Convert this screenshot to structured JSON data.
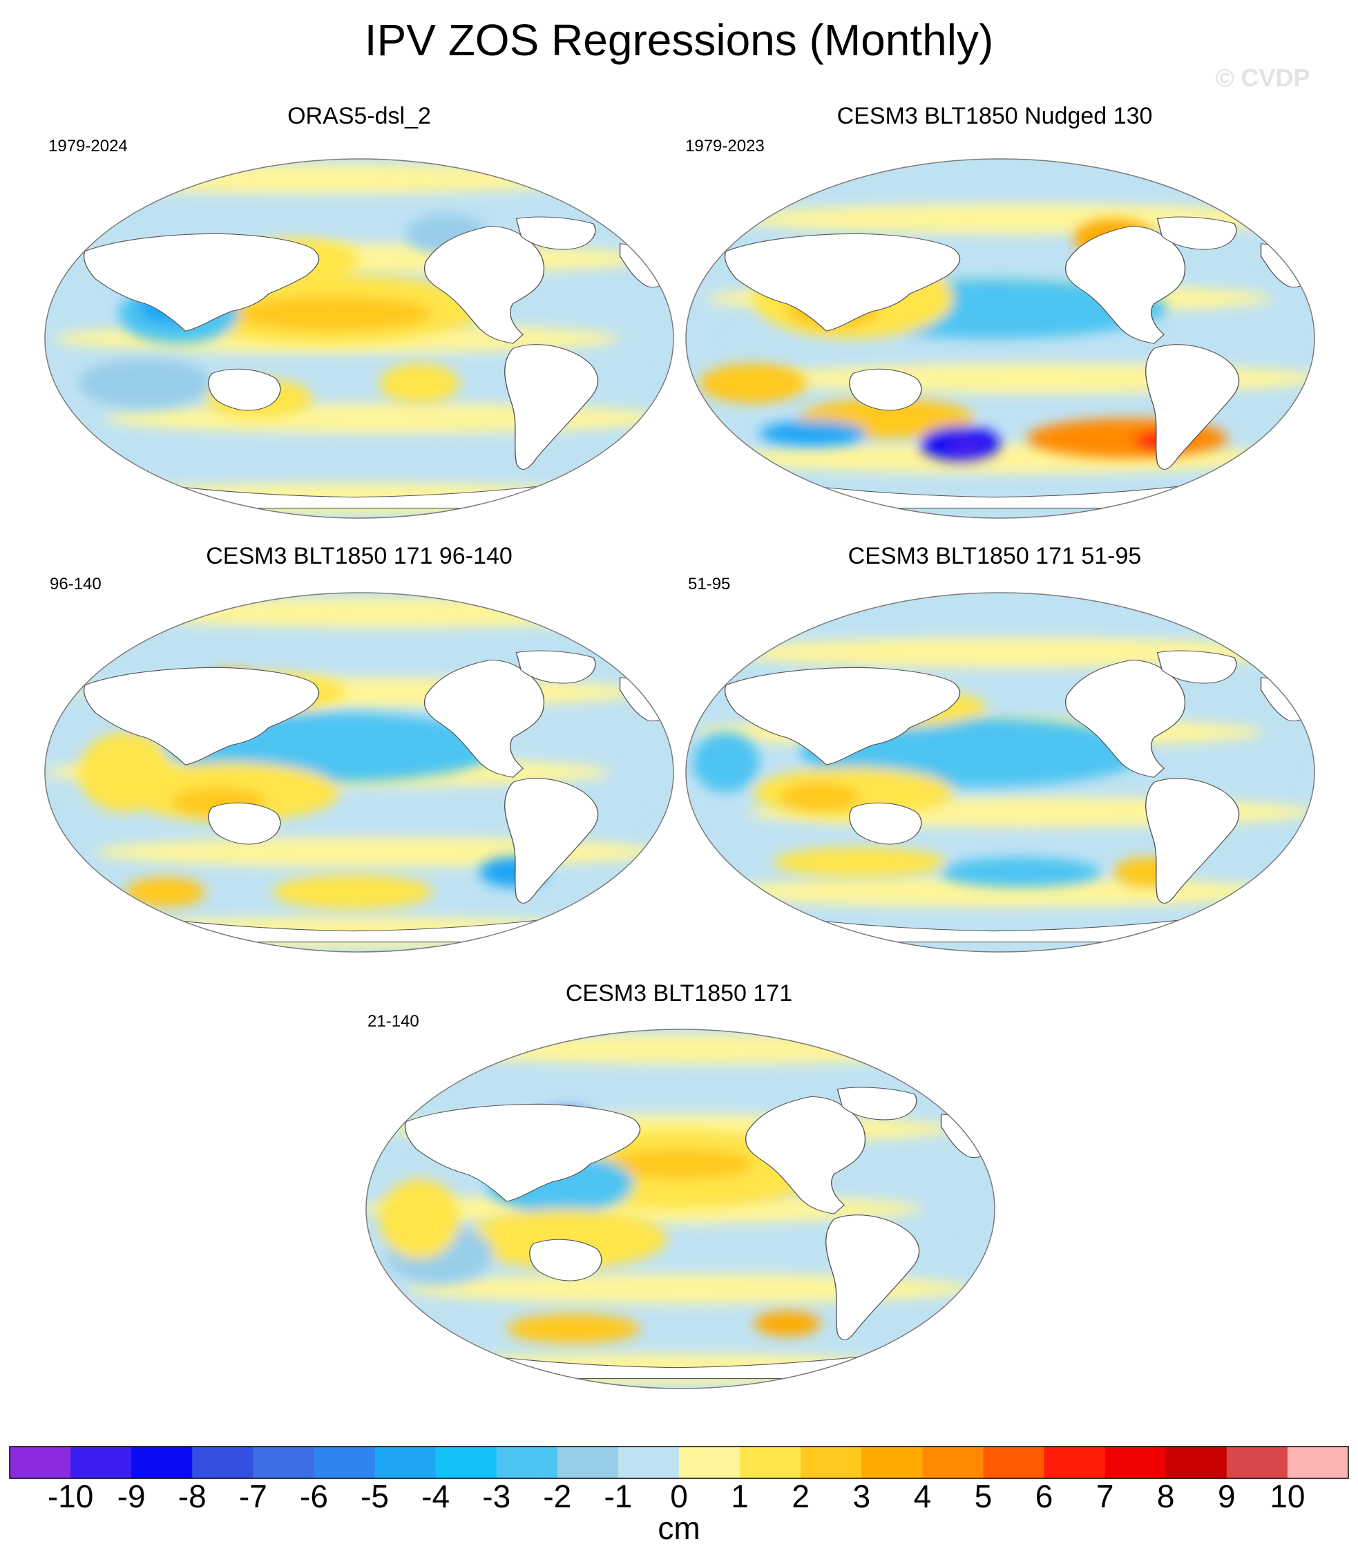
{
  "title": "IPV ZOS Regressions (Monthly)",
  "watermark": "© CVDP",
  "chart_data": {
    "type": "heatmap",
    "variable": "ZOS regression on IPV",
    "units": "cm",
    "colorbar": {
      "ticks": [
        "-10",
        "-9",
        "-8",
        "-7",
        "-6",
        "-5",
        "-4",
        "-3",
        "-2",
        "-1",
        "0",
        "1",
        "2",
        "3",
        "4",
        "5",
        "6",
        "7",
        "8",
        "9",
        "10"
      ],
      "colors": [
        "#8a2be2",
        "#3c1ef0",
        "#0a0af5",
        "#3450e0",
        "#3d6ee6",
        "#2f84f0",
        "#1ea6f5",
        "#12c2f8",
        "#4ec4f2",
        "#98cdea",
        "#bfe2f3",
        "#fff59a",
        "#ffe54a",
        "#ffc81f",
        "#ffaa00",
        "#ff8a00",
        "#ff5a00",
        "#ff1e0a",
        "#f00000",
        "#c80000",
        "#d94848",
        "#ffb4b4"
      ]
    },
    "panels": [
      {
        "title": "ORAS5-dsl_2",
        "period": "1979-2024"
      },
      {
        "title": "CESM3 BLT1850 Nudged 130",
        "period": "1979-2023"
      },
      {
        "title": "CESM3 BLT1850 171 96-140",
        "period": "96-140"
      },
      {
        "title": "CESM3 BLT1850 171 51-95",
        "period": "51-95"
      },
      {
        "title": "CESM3 BLT1850 171",
        "period": "21-140"
      }
    ]
  }
}
